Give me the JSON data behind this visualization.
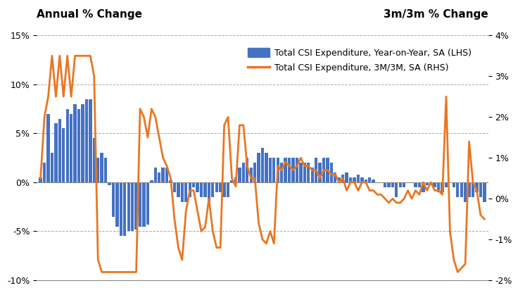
{
  "title_left": "Annual % Change",
  "title_right": "3m/3m % Change",
  "legend_bar": "Total CSI Expenditure, Year-on-Year, SA (LHS)",
  "legend_line": "Total CSI Expenditure, 3M/3M, SA (RHS)",
  "bar_color": "#4472C4",
  "line_color": "#E87722",
  "ylim_left": [
    -10,
    15
  ],
  "ylim_right": [
    -2.0,
    4.0
  ],
  "yticks_left": [
    -10,
    -5,
    0,
    5,
    10,
    15
  ],
  "yticks_right": [
    -2,
    -1,
    0,
    1,
    2,
    3,
    4
  ],
  "ytick_labels_left": [
    "-10%",
    "-5%",
    "0%",
    "5%",
    "10%",
    "15%"
  ],
  "ytick_labels_right": [
    "-2%",
    "-1%",
    "0%",
    "1%",
    "2%",
    "3%",
    "4%"
  ],
  "bar_values": [
    0.5,
    2.0,
    7.0,
    3.0,
    6.0,
    6.5,
    5.5,
    7.5,
    7.0,
    8.0,
    7.5,
    8.0,
    8.5,
    8.5,
    4.5,
    2.5,
    3.0,
    2.5,
    -0.3,
    -3.5,
    -4.5,
    -5.5,
    -5.5,
    -5.0,
    -5.0,
    -4.8,
    -4.5,
    -4.5,
    -4.3,
    0.2,
    1.5,
    1.0,
    1.5,
    1.5,
    0.2,
    -1.0,
    -1.5,
    -2.0,
    -2.0,
    -1.5,
    -0.5,
    -1.0,
    -1.5,
    -1.5,
    -2.0,
    -1.5,
    -1.0,
    -1.0,
    -1.5,
    -1.5,
    0.2,
    0.5,
    1.5,
    2.0,
    2.5,
    1.5,
    2.0,
    3.0,
    3.5,
    3.0,
    2.5,
    2.5,
    2.5,
    2.0,
    2.5,
    2.5,
    2.5,
    2.5,
    2.0,
    2.0,
    2.0,
    1.5,
    2.5,
    2.0,
    2.5,
    2.5,
    2.0,
    1.0,
    0.5,
    0.8,
    1.0,
    0.5,
    0.5,
    0.8,
    0.5,
    0.3,
    0.5,
    0.3,
    0.0,
    0.0,
    -0.5,
    -0.5,
    -0.5,
    -1.5,
    -0.5,
    -0.5,
    0.0,
    0.0,
    -0.5,
    -0.5,
    -1.0,
    -0.3,
    -0.3,
    -0.5,
    -1.0,
    -1.0,
    -0.5,
    0.0,
    -0.5,
    -1.5,
    -1.5,
    -2.0,
    -1.5,
    -1.5,
    -1.0,
    -1.5,
    -2.0
  ],
  "line_values": [
    0.5,
    2.0,
    2.5,
    3.5,
    2.5,
    3.5,
    2.5,
    3.5,
    2.5,
    3.5,
    3.5,
    3.5,
    3.5,
    3.5,
    3.0,
    -1.5,
    -1.8,
    -1.8,
    -1.8,
    -1.8,
    -1.8,
    -1.8,
    -1.8,
    -1.8,
    -1.8,
    -1.8,
    2.2,
    2.0,
    1.5,
    2.2,
    2.0,
    1.5,
    1.0,
    0.8,
    0.5,
    -0.5,
    -1.2,
    -1.5,
    -0.3,
    0.2,
    0.2,
    -0.3,
    -0.8,
    -0.7,
    0.0,
    -0.8,
    -1.2,
    -1.2,
    1.8,
    2.0,
    0.5,
    0.3,
    1.8,
    1.8,
    0.8,
    0.5,
    0.5,
    -0.6,
    -1.0,
    -1.1,
    -0.8,
    -1.1,
    0.8,
    0.7,
    0.9,
    0.8,
    0.7,
    0.8,
    1.0,
    0.8,
    0.8,
    0.7,
    0.7,
    0.5,
    0.7,
    0.7,
    0.6,
    0.6,
    0.4,
    0.5,
    0.2,
    0.4,
    0.4,
    0.2,
    0.4,
    0.4,
    0.2,
    0.2,
    0.1,
    0.1,
    0.0,
    -0.1,
    0.0,
    -0.1,
    -0.1,
    0.0,
    0.2,
    0.0,
    0.2,
    0.1,
    0.4,
    0.2,
    0.4,
    0.2,
    0.2,
    0.1,
    2.5,
    -0.8,
    -1.5,
    -1.8,
    -1.7,
    -1.6,
    1.4,
    0.4,
    0.2,
    -0.4,
    -0.5
  ]
}
